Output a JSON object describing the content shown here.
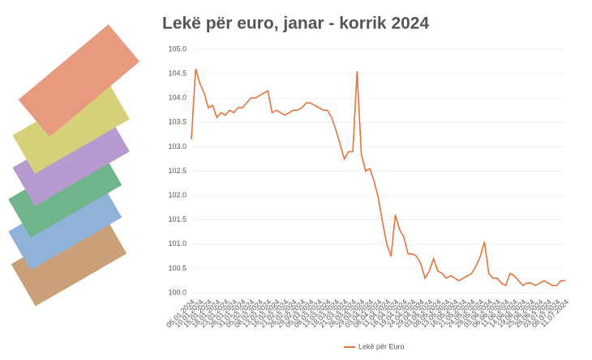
{
  "chart_data": {
    "type": "line",
    "title": "Lekë për euro, janar - korrik 2024",
    "categories": [
      "05.01.2024",
      null,
      "10.01.2024",
      null,
      "15.01.2024",
      null,
      "18.01.2024",
      null,
      "23.01.2024",
      null,
      "26.01.2024",
      null,
      "31.01.2024",
      null,
      "05.02.2024",
      null,
      "08.02.2024",
      null,
      "13.02.2024",
      null,
      "16.02.2024",
      null,
      "21.02.2024",
      null,
      "26.02.2024",
      null,
      "29.02.2024",
      null,
      "05.03.2024",
      null,
      "08.03.2024",
      null,
      "13.03.2024",
      null,
      "18.03.2024",
      null,
      "21.03.2024",
      null,
      "26.03.2024",
      null,
      "29.03.2024",
      null,
      "03.04.2024",
      null,
      "08.04.2024",
      null,
      "11.04.2024",
      null,
      "16.04.2024",
      null,
      "19.04.2024",
      null,
      "24.04.2024",
      null,
      "29.04.2024",
      null,
      "03.05.2024",
      null,
      "08.05.2024",
      null,
      "13.05.2024",
      null,
      "16.05.2024",
      null,
      "21.05.2024",
      null,
      "24.05.2024",
      null,
      "29.05.2024",
      null,
      "03.06.2024",
      null,
      "06.06.2024",
      null,
      "11.06.2024",
      null,
      "14.06.2024",
      null,
      "19.06.2024",
      null,
      "25.06.2024",
      null,
      "28.06.2024",
      null,
      "03.07.2024",
      null,
      "08.07.2024",
      null,
      "11.07.2024"
    ],
    "series": [
      {
        "name": "Lekë për Euro",
        "color": "#e8733a",
        "values": [
          103.15,
          104.6,
          104.3,
          104.1,
          103.8,
          103.85,
          103.6,
          103.7,
          103.65,
          103.75,
          103.7,
          103.8,
          103.8,
          103.9,
          104.0,
          104.0,
          104.05,
          104.1,
          104.15,
          103.7,
          103.75,
          103.7,
          103.65,
          103.7,
          103.75,
          103.75,
          103.8,
          103.9,
          103.9,
          103.85,
          103.8,
          103.75,
          103.75,
          103.6,
          103.35,
          103.05,
          102.75,
          102.9,
          102.9,
          104.55,
          102.85,
          102.5,
          102.55,
          102.3,
          101.95,
          101.45,
          101.0,
          100.75,
          101.6,
          101.3,
          101.15,
          100.8,
          100.8,
          100.75,
          100.6,
          100.3,
          100.45,
          100.7,
          100.45,
          100.4,
          100.3,
          100.35,
          100.3,
          100.25,
          100.3,
          100.35,
          100.4,
          100.55,
          100.75,
          101.05,
          100.4,
          100.3,
          100.3,
          100.2,
          100.15,
          100.4,
          100.35,
          100.25,
          100.15,
          100.2,
          100.2,
          100.15,
          100.2,
          100.25,
          100.2,
          100.15,
          100.15,
          100.25,
          100.25
        ]
      }
    ],
    "ylim": [
      100,
      105
    ],
    "yticks": [
      {
        "value": 100,
        "label": "100.0"
      },
      100.5,
      {
        "value": 101,
        "label": "101.0"
      },
      101.5,
      {
        "value": 102,
        "label": "102.0"
      },
      102.5,
      {
        "value": 103,
        "label": "103.0"
      },
      103.5,
      {
        "value": 104,
        "label": "104.0"
      },
      104.5,
      {
        "value": 105,
        "label": "105.0"
      }
    ],
    "grid": true,
    "legend": "bottom"
  }
}
